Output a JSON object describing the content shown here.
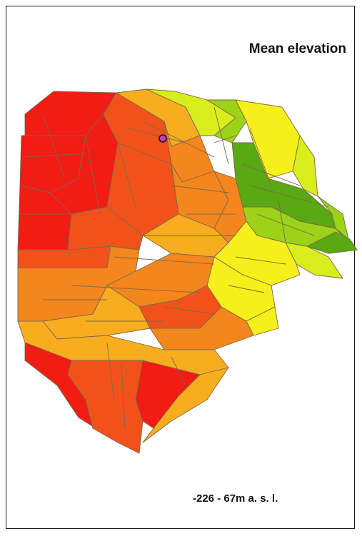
{
  "map": {
    "title": "Mean elevation",
    "range_label": "-226 - 67m a. s. l.",
    "colors": {
      "red": "#f21c14",
      "red_orange": "#f2521a",
      "orange": "#f5861d",
      "light_orange": "#f8ad1f",
      "yellow": "#f6f01a",
      "yellow_green": "#d8ee1c",
      "light_green": "#9cd316",
      "green": "#5aa813",
      "point_marker": "#c73ab8"
    }
  }
}
